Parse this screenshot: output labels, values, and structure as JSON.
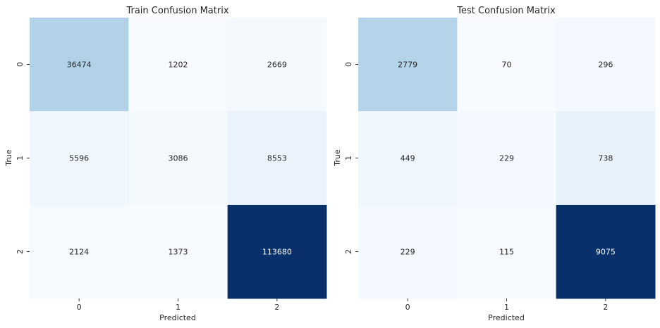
{
  "chart_data": [
    {
      "type": "heatmap",
      "title": "Train Confusion Matrix",
      "xlabel": "Predicted",
      "ylabel": "True",
      "x_categories": [
        "0",
        "1",
        "2"
      ],
      "y_categories": [
        "0",
        "1",
        "2"
      ],
      "values": [
        [
          36474,
          1202,
          2669
        ],
        [
          5596,
          3086,
          8553
        ],
        [
          2124,
          1373,
          113680
        ]
      ],
      "colormap": "Blues",
      "colorbar": false
    },
    {
      "type": "heatmap",
      "title": "Test Confusion Matrix",
      "xlabel": "Predicted",
      "ylabel": "True",
      "x_categories": [
        "0",
        "1",
        "2"
      ],
      "y_categories": [
        "0",
        "1",
        "2"
      ],
      "values": [
        [
          2779,
          70,
          296
        ],
        [
          449,
          229,
          738
        ],
        [
          229,
          115,
          9075
        ]
      ],
      "colormap": "Blues",
      "colorbar": false
    }
  ]
}
